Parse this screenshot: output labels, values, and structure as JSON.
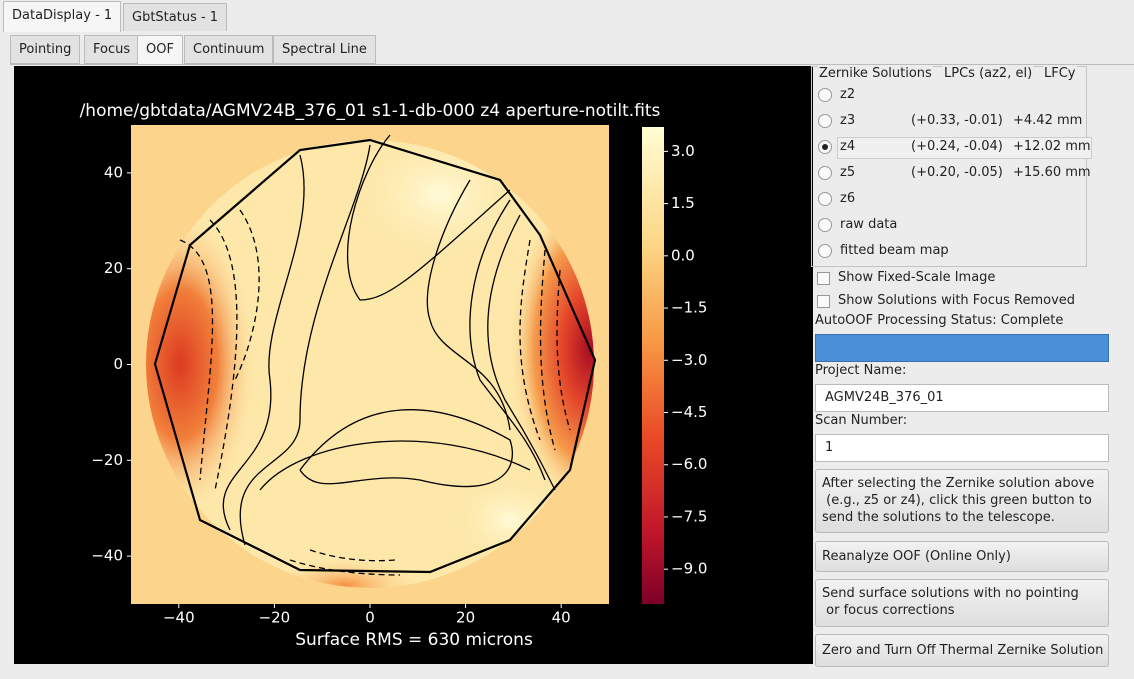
{
  "tabs": {
    "items": [
      "DataDisplay - 1",
      "GbtStatus - 1"
    ],
    "active": 0
  },
  "subtabs": {
    "items": [
      "Pointing",
      "Focus",
      "OOF",
      "Continuum",
      "Spectral Line"
    ],
    "active": 2
  },
  "chart_data": {
    "type": "heatmap",
    "title": "/home/gbtdata/AGMV24B_376_01 s1-1-db-000 z4 aperture-notilt.fits",
    "xlabel": "Surface RMS = 630 microns",
    "xlim": [
      -50,
      50
    ],
    "ylim": [
      -50,
      50
    ],
    "xticks": [
      {
        "value": -40,
        "label": "−40"
      },
      {
        "value": -20,
        "label": "−20"
      },
      0,
      20,
      40
    ],
    "yticks": [
      40,
      20,
      0,
      {
        "value": -20,
        "label": "−20"
      },
      {
        "value": -40,
        "label": "−40"
      }
    ],
    "colorbar": {
      "lim": [
        -10,
        3.7
      ],
      "ticks": [
        {
          "value": 3,
          "label": "3.0"
        },
        {
          "value": 1.5,
          "label": "1.5"
        },
        {
          "value": 0,
          "label": "0.0"
        },
        {
          "value": -1.5,
          "label": "−1.5"
        },
        {
          "value": -3,
          "label": "−3.0"
        },
        {
          "value": -4.5,
          "label": "−4.5"
        },
        {
          "value": -6,
          "label": "−6.0"
        },
        {
          "value": -7.5,
          "label": "−7.5"
        },
        {
          "value": -9,
          "label": "−9.0"
        }
      ]
    }
  },
  "panel": {
    "zernike": {
      "header": [
        "Zernike Solutions",
        "LPCs (az2, el)",
        "LFCy"
      ],
      "selected": 2,
      "options": [
        {
          "label": "z2"
        },
        {
          "label": "z3",
          "lpc": "(+0.33, -0.01)",
          "lfc": "+4.42 mm"
        },
        {
          "label": "z4",
          "lpc": "(+0.24, -0.04)",
          "lfc": "+12.02 mm"
        },
        {
          "label": "z5",
          "lpc": "(+0.20, -0.05)",
          "lfc": "+15.60 mm"
        },
        {
          "label": "z6"
        },
        {
          "label": "raw data"
        },
        {
          "label": "fitted beam map"
        }
      ]
    },
    "checkboxes": [
      "Show Fixed-Scale Image",
      "Show Solutions with Focus Removed"
    ],
    "status": "AutoOOF Processing Status: Complete",
    "project_label": "Project Name:",
    "project_value": "AGMV24B_376_01",
    "scan_label": "Scan Number:",
    "scan_value": "1",
    "buttons": [
      "After selecting the Zernike solution above\n (e.g., z5 or z4), click this green button to\nsend the solutions to the telescope.",
      "Reanalyze OOF (Online Only)",
      "Send surface solutions with no pointing\n or focus corrections",
      "Zero and Turn Off Thermal Zernike Solution"
    ]
  }
}
